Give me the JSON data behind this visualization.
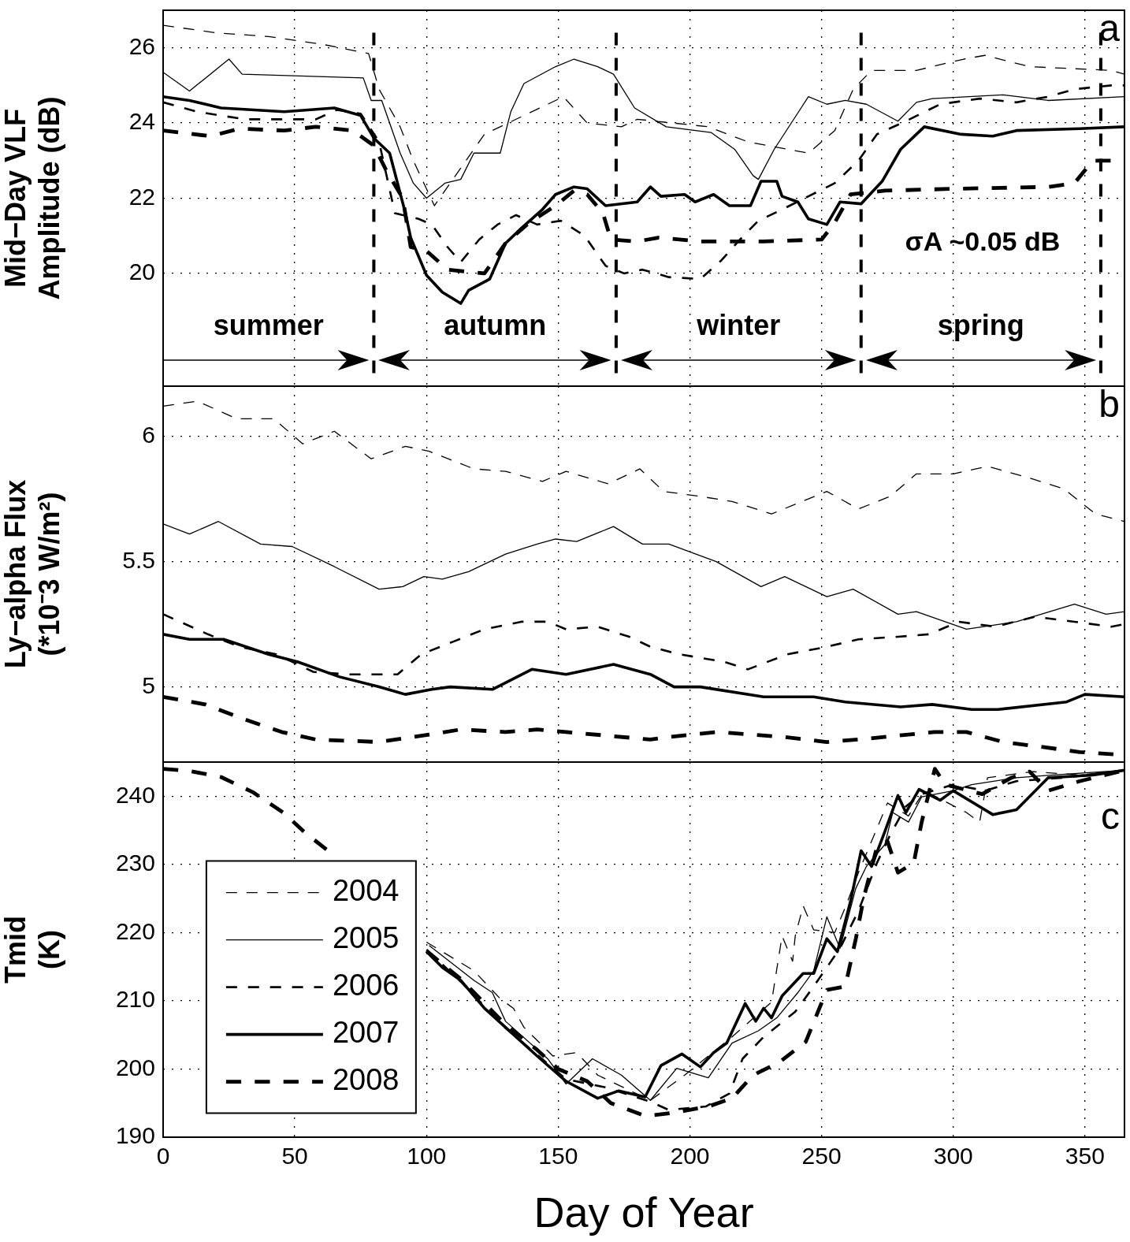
{
  "chart_data": [
    {
      "type": "line",
      "ylabel": "Mid−Day VLF\nAmplitude (dB)",
      "xlim": [
        0,
        365
      ],
      "ylim": [
        17,
        27
      ],
      "xticks": [
        0,
        50,
        100,
        150,
        200,
        250,
        300,
        350
      ],
      "yticks": [
        20,
        22,
        24,
        26
      ],
      "grid": true,
      "tick_labels": "y",
      "annotations": [
        "a",
        "summer",
        "autumn",
        "winter",
        "spring",
        "σA ~0.05 dB"
      ],
      "ref_lines": [
        {
          "axis": "x",
          "value": 80,
          "color": "#000000",
          "line_style": "dashed"
        },
        {
          "axis": "x",
          "value": 172,
          "color": "#000000",
          "line_style": "dashed"
        },
        {
          "axis": "x",
          "value": 265,
          "color": "#000000",
          "line_style": "dashed"
        },
        {
          "axis": "x",
          "value": 356,
          "color": "#000000",
          "line_style": "dashed"
        }
      ],
      "series": [
        {
          "color": "#000000",
          "line_style": "dashed",
          "x": [
            0,
            20,
            40,
            60,
            78,
            82,
            90,
            95,
            103,
            122,
            152,
            161,
            174,
            180,
            207,
            222,
            245,
            255,
            262,
            269,
            286,
            304,
            312,
            329,
            360,
            365
          ],
          "values": [
            26.6,
            26.4,
            26.3,
            26.1,
            25.85,
            24.9,
            23.9,
            23.0,
            21.8,
            23.7,
            24.7,
            24.0,
            23.9,
            24.1,
            23.9,
            23.5,
            23.2,
            23.8,
            24.9,
            25.4,
            25.4,
            25.7,
            25.8,
            25.5,
            25.4,
            25.3
          ]
        },
        {
          "color": "#000000",
          "line_style": "solid",
          "x": [
            0,
            10,
            25,
            30,
            76,
            79,
            83,
            90,
            95,
            100,
            107,
            113,
            118,
            128,
            132,
            137,
            149,
            156,
            165,
            171,
            179,
            191,
            208,
            217,
            224,
            226,
            232,
            245,
            252,
            259,
            267,
            279,
            286,
            292,
            319,
            336,
            365
          ],
          "values": [
            25.35,
            24.85,
            25.7,
            25.3,
            25.2,
            24.6,
            24.6,
            23.2,
            22.4,
            22.0,
            22.4,
            22.5,
            23.2,
            23.2,
            24.3,
            25.05,
            25.5,
            25.7,
            25.5,
            25.3,
            24.4,
            23.9,
            23.75,
            23.3,
            22.6,
            22.5,
            23.3,
            24.7,
            24.5,
            24.6,
            24.5,
            24.05,
            24.55,
            24.65,
            24.75,
            24.6,
            24.7
          ]
        },
        {
          "color": "#000000",
          "line_style": "dashed",
          "x": [
            0,
            13,
            31,
            58,
            66,
            75,
            82,
            88,
            97,
            102,
            108,
            113,
            120,
            127,
            134,
            142,
            151,
            160,
            168,
            175,
            182,
            192,
            204,
            212,
            219,
            226,
            235,
            245,
            255,
            264,
            271,
            282,
            295,
            310,
            324,
            336,
            346,
            360,
            365
          ],
          "values": [
            24.55,
            24.3,
            24.1,
            24.1,
            24.35,
            24.25,
            23.5,
            21.6,
            21.45,
            21.3,
            20.7,
            20.3,
            20.9,
            21.3,
            21.55,
            21.3,
            21.4,
            21.0,
            20.2,
            20.0,
            20.1,
            19.9,
            19.85,
            20.35,
            20.9,
            21.4,
            21.7,
            22.05,
            22.4,
            23.0,
            23.7,
            24.05,
            24.5,
            24.65,
            24.55,
            24.7,
            24.9,
            25.0,
            25.0
          ]
        },
        {
          "color": "#000000",
          "line_style": "solid",
          "x": [
            0,
            10,
            22,
            46,
            65,
            75,
            80,
            86,
            92,
            94,
            100,
            106,
            113,
            116,
            124,
            130,
            136,
            144,
            149,
            156,
            161,
            168,
            180,
            185,
            189,
            198,
            202,
            209,
            215,
            223,
            227,
            233,
            235,
            241,
            245,
            252,
            257,
            265,
            273,
            280,
            286,
            289,
            303,
            315,
            324,
            348,
            365
          ],
          "values": [
            24.7,
            24.6,
            24.4,
            24.3,
            24.4,
            24.2,
            23.6,
            23.2,
            21.6,
            20.95,
            19.95,
            19.5,
            19.2,
            19.55,
            19.85,
            20.8,
            21.2,
            21.7,
            22.1,
            22.3,
            22.25,
            21.8,
            21.9,
            22.3,
            22.05,
            22.1,
            21.9,
            22.1,
            21.8,
            21.8,
            22.45,
            22.45,
            22.05,
            21.9,
            21.45,
            21.3,
            21.9,
            21.85,
            22.45,
            23.3,
            23.7,
            23.9,
            23.7,
            23.65,
            23.8,
            23.85,
            23.9
          ]
        },
        {
          "color": "#000000",
          "line_style": "dashed",
          "x": [
            0,
            18,
            29,
            46,
            58,
            72,
            80,
            85,
            91,
            94,
            100,
            108,
            122,
            130,
            139,
            149,
            156,
            161,
            167,
            170,
            180,
            188,
            204,
            228,
            250,
            255,
            261,
            274,
            300,
            336,
            346,
            353,
            365
          ],
          "values": [
            23.8,
            23.65,
            23.85,
            23.8,
            23.9,
            23.8,
            23.4,
            22.7,
            22.0,
            20.7,
            20.6,
            20.1,
            20.0,
            20.8,
            21.35,
            21.8,
            22.2,
            22.1,
            21.6,
            20.9,
            20.85,
            20.95,
            20.85,
            20.85,
            20.9,
            21.35,
            22.1,
            22.2,
            22.25,
            22.3,
            22.4,
            23.0,
            23.0
          ]
        }
      ]
    },
    {
      "type": "line",
      "ylabel": "Ly−alpha Flux\n(*10⁻3 W/m²)",
      "xlim": [
        0,
        365
      ],
      "ylim": [
        4.7,
        6.2
      ],
      "xticks": [
        0,
        50,
        100,
        150,
        200,
        250,
        300,
        350
      ],
      "yticks": [
        5,
        5.5,
        6
      ],
      "grid": true,
      "tick_labels": "y",
      "annotations": [
        "b"
      ],
      "series": [
        {
          "color": "#000000",
          "line_style": "dashed",
          "x": [
            0,
            13,
            28,
            42,
            53,
            65,
            79,
            92,
            101,
            118,
            130,
            144,
            153,
            169,
            181,
            190,
            204,
            216,
            231,
            252,
            264,
            276,
            286,
            300,
            313,
            330,
            342,
            354,
            365
          ],
          "values": [
            6.12,
            6.14,
            6.07,
            6.07,
            5.97,
            6.02,
            5.91,
            5.96,
            5.94,
            5.87,
            5.86,
            5.82,
            5.86,
            5.81,
            5.87,
            5.78,
            5.76,
            5.74,
            5.69,
            5.78,
            5.71,
            5.76,
            5.85,
            5.85,
            5.88,
            5.83,
            5.79,
            5.69,
            5.66
          ]
        },
        {
          "color": "#000000",
          "line_style": "solid",
          "x": [
            0,
            10,
            21,
            37,
            49,
            65,
            82,
            91,
            99,
            106,
            116,
            130,
            142,
            149,
            157,
            171,
            182,
            192,
            210,
            227,
            236,
            252,
            262,
            279,
            286,
            305,
            324,
            346,
            358,
            365
          ],
          "values": [
            5.65,
            5.61,
            5.66,
            5.57,
            5.56,
            5.48,
            5.39,
            5.4,
            5.44,
            5.43,
            5.46,
            5.53,
            5.57,
            5.59,
            5.58,
            5.64,
            5.57,
            5.57,
            5.5,
            5.4,
            5.44,
            5.36,
            5.39,
            5.29,
            5.3,
            5.23,
            5.26,
            5.33,
            5.29,
            5.3
          ]
        },
        {
          "color": "#000000",
          "line_style": "dashed",
          "x": [
            0,
            17,
            29,
            43,
            57,
            70,
            89,
            98,
            110,
            122,
            136,
            146,
            153,
            165,
            177,
            185,
            196,
            213,
            222,
            237,
            252,
            264,
            279,
            291,
            302,
            316,
            331,
            346,
            360,
            365
          ],
          "values": [
            5.29,
            5.21,
            5.16,
            5.13,
            5.06,
            5.05,
            5.05,
            5.13,
            5.18,
            5.23,
            5.26,
            5.26,
            5.23,
            5.24,
            5.2,
            5.16,
            5.13,
            5.1,
            5.07,
            5.13,
            5.16,
            5.19,
            5.2,
            5.21,
            5.26,
            5.24,
            5.28,
            5.26,
            5.24,
            5.25
          ]
        },
        {
          "color": "#000000",
          "line_style": "solid",
          "x": [
            0,
            10,
            23,
            40,
            51,
            67,
            82,
            92,
            102,
            109,
            125,
            140,
            153,
            171,
            185,
            194,
            204,
            228,
            247,
            259,
            280,
            292,
            307,
            317,
            343,
            350,
            365
          ],
          "values": [
            5.21,
            5.19,
            5.19,
            5.13,
            5.1,
            5.04,
            5.0,
            4.97,
            4.99,
            5.0,
            4.99,
            5.07,
            5.05,
            5.09,
            5.05,
            5.0,
            5.0,
            4.96,
            4.96,
            4.94,
            4.92,
            4.93,
            4.91,
            4.91,
            4.94,
            4.97,
            4.96
          ]
        },
        {
          "color": "#000000",
          "line_style": "dashed",
          "x": [
            0,
            16,
            31,
            45,
            58,
            82,
            101,
            113,
            130,
            142,
            153,
            185,
            192,
            210,
            236,
            252,
            264,
            293,
            305,
            319,
            334,
            348,
            362,
            365
          ],
          "values": [
            4.96,
            4.93,
            4.87,
            4.82,
            4.79,
            4.78,
            4.81,
            4.83,
            4.82,
            4.83,
            4.82,
            4.79,
            4.8,
            4.82,
            4.8,
            4.78,
            4.79,
            4.82,
            4.82,
            4.78,
            4.76,
            4.74,
            4.73,
            4.73
          ]
        }
      ]
    },
    {
      "type": "line",
      "xlabel": "Day of Year",
      "ylabel": "Tmid\n(K)",
      "xlim": [
        0,
        365
      ],
      "ylim": [
        190,
        245
      ],
      "xticks": [
        0,
        50,
        100,
        150,
        200,
        250,
        300,
        350
      ],
      "yticks": [
        190,
        200,
        210,
        220,
        230,
        240
      ],
      "grid": true,
      "legend": "left",
      "annotations": [
        "c"
      ],
      "series": [
        {
          "name": "2004",
          "color": "#000000",
          "line_style": "dashed",
          "x": [
            100,
            118,
            128,
            133,
            137,
            148,
            157,
            165,
            185,
            198,
            216,
            231,
            235,
            239,
            240,
            243,
            247,
            255,
            259,
            264,
            273,
            275,
            283,
            289,
            305,
            310,
            313,
            330,
            348,
            365
          ],
          "values": [
            218.6,
            214.4,
            210.3,
            208.9,
            206.1,
            201.9,
            202.4,
            199.1,
            195.4,
            199.1,
            204.7,
            209.8,
            219.5,
            215.8,
            219.5,
            223.9,
            220.4,
            220.0,
            223.7,
            228.8,
            237.1,
            239.0,
            237.1,
            240.8,
            237.6,
            236.2,
            242.7,
            243.6,
            243.1,
            243.8
          ]
        },
        {
          "name": "2005",
          "color": "#000000",
          "line_style": "solid",
          "x": [
            101,
            118,
            125,
            130,
            146,
            153,
            163,
            174,
            185,
            195,
            207,
            216,
            226,
            233,
            241,
            247,
            252,
            257,
            263,
            267,
            274,
            277,
            283,
            288,
            300,
            307,
            324,
            338,
            365
          ],
          "values": [
            218.1,
            213.0,
            211.2,
            207.0,
            201.5,
            197.8,
            201.5,
            199.1,
            195.4,
            200.1,
            198.7,
            203.8,
            205.6,
            207.5,
            211.2,
            214.4,
            222.3,
            217.7,
            226.5,
            229.7,
            232.9,
            237.6,
            236.2,
            239.9,
            240.8,
            241.7,
            242.7,
            243.1,
            243.8
          ]
        },
        {
          "name": "2006",
          "color": "#000000",
          "line_style": "dashed",
          "x": [
            100,
            113,
            130,
            153,
            168,
            185,
            192,
            206,
            215,
            220,
            228,
            240,
            247,
            257,
            264,
            271,
            276,
            282,
            288,
            300,
            312,
            324,
            342,
            365
          ],
          "values": [
            217.5,
            212.8,
            206.0,
            198.5,
            197.3,
            195.2,
            194.0,
            194.5,
            196.4,
            201.5,
            204.7,
            208.4,
            212.1,
            217.7,
            223.2,
            230.2,
            234.3,
            238.5,
            240.3,
            241.7,
            240.8,
            242.2,
            242.7,
            243.8
          ]
        },
        {
          "name": "2007",
          "color": "#000000",
          "line_style": "solid",
          "x": [
            100,
            106,
            113,
            122,
            130,
            142,
            153,
            165,
            173,
            183,
            189,
            197,
            204,
            209,
            214,
            221,
            225,
            228,
            231,
            235,
            243,
            247,
            252,
            256,
            261,
            265,
            269,
            274,
            279,
            282,
            287,
            295,
            300,
            315,
            324,
            336,
            353,
            365
          ],
          "values": [
            217.2,
            214.9,
            213.0,
            208.9,
            206.1,
            201.9,
            198.2,
            195.7,
            196.8,
            195.9,
            200.5,
            202.2,
            200.3,
            202.4,
            203.8,
            209.6,
            207.0,
            208.9,
            207.5,
            210.7,
            214.0,
            214.0,
            219.1,
            217.2,
            224.6,
            232.0,
            229.7,
            234.8,
            240.1,
            237.6,
            241.0,
            239.4,
            240.8,
            237.3,
            238.0,
            242.7,
            243.1,
            243.8
          ]
        },
        {
          "name": "2008",
          "color": "#000000",
          "line_style": "dashed",
          "x": [
            0,
            10,
            22,
            34,
            46,
            54,
            64,
            80,
            100,
            113,
            130,
            142,
            150,
            161,
            170,
            183,
            194,
            207,
            216,
            224,
            234,
            244,
            252,
            259,
            263,
            266,
            271,
            275,
            279,
            285,
            288,
            293,
            297,
            311,
            322,
            329,
            336,
            348,
            365
          ],
          "values": [
            244.0,
            243.7,
            242.8,
            240.6,
            237.5,
            234.6,
            231.6,
            null,
            217.3,
            213.2,
            206.5,
            202.8,
            200.0,
            198.2,
            195.0,
            193.1,
            193.6,
            194.5,
            195.7,
            199.1,
            201.0,
            204.0,
            211.6,
            212.1,
            219.1,
            225.1,
            232.5,
            233.4,
            228.8,
            230.2,
            236.2,
            244.0,
            241.7,
            240.3,
            242.7,
            243.6,
            240.8,
            242.2,
            243.8
          ]
        }
      ]
    }
  ]
}
